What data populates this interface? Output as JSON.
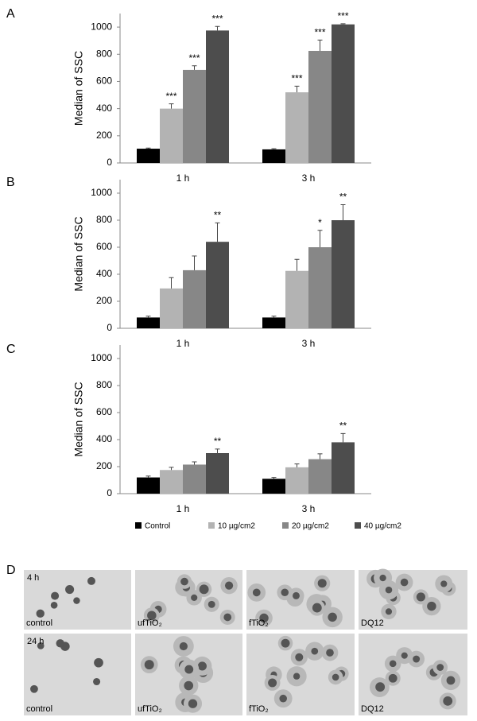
{
  "chart_data": [
    {
      "type": "bar",
      "panel": "A",
      "ylabel": "Median of SSC",
      "categories": [
        "1 h",
        "3 h"
      ],
      "ylim": [
        0,
        1100
      ],
      "yticks": [
        0,
        200,
        400,
        600,
        800,
        1000
      ],
      "series": [
        {
          "name": "Control",
          "color": "#000000",
          "values": [
            105,
            100
          ],
          "errors": [
            5,
            5
          ],
          "sig_labels": [
            null,
            null
          ]
        },
        {
          "name": "10 µg/cm2",
          "color": "#b3b3b3",
          "values": [
            400,
            520
          ],
          "errors": [
            35,
            45
          ],
          "sig_labels": [
            "***",
            "***"
          ]
        },
        {
          "name": "20 µg/cm2",
          "color": "#878787",
          "values": [
            685,
            825
          ],
          "errors": [
            30,
            80
          ],
          "sig_labels": [
            "***",
            "***"
          ]
        },
        {
          "name": "40 µg/cm2",
          "color": "#4d4d4d",
          "values": [
            975,
            1020
          ],
          "errors": [
            30,
            5
          ],
          "sig_labels": [
            "***",
            "***"
          ]
        }
      ]
    },
    {
      "type": "bar",
      "panel": "B",
      "ylabel": "Median of SSC",
      "categories": [
        "1 h",
        "3 h"
      ],
      "ylim": [
        0,
        1100
      ],
      "yticks": [
        0,
        200,
        400,
        600,
        800,
        1000
      ],
      "series": [
        {
          "color": "#000000",
          "values": [
            80,
            80
          ],
          "errors": [
            10,
            10
          ],
          "sig_labels": [
            null,
            null
          ]
        },
        {
          "color": "#b3b3b3",
          "values": [
            295,
            425
          ],
          "errors": [
            80,
            85
          ],
          "sig_labels": [
            null,
            null
          ]
        },
        {
          "color": "#878787",
          "values": [
            430,
            600
          ],
          "errors": [
            105,
            125
          ],
          "sig_labels": [
            null,
            "*"
          ]
        },
        {
          "color": "#4d4d4d",
          "values": [
            640,
            800
          ],
          "errors": [
            140,
            115
          ],
          "sig_labels": [
            "**",
            "**"
          ]
        }
      ]
    },
    {
      "type": "bar",
      "panel": "C",
      "ylabel": "Median of SSC",
      "categories": [
        "1 h",
        "3 h"
      ],
      "ylim": [
        0,
        1100
      ],
      "yticks": [
        0,
        200,
        400,
        600,
        800,
        1000
      ],
      "series": [
        {
          "color": "#000000",
          "values": [
            120,
            110
          ],
          "errors": [
            10,
            10
          ],
          "sig_labels": [
            null,
            null
          ]
        },
        {
          "color": "#b3b3b3",
          "values": [
            175,
            195
          ],
          "errors": [
            20,
            25
          ],
          "sig_labels": [
            null,
            null
          ]
        },
        {
          "color": "#878787",
          "values": [
            215,
            255
          ],
          "errors": [
            20,
            40
          ],
          "sig_labels": [
            null,
            null
          ]
        },
        {
          "color": "#4d4d4d",
          "values": [
            300,
            380
          ],
          "errors": [
            30,
            65
          ],
          "sig_labels": [
            "**",
            "**"
          ]
        }
      ]
    }
  ],
  "micrographs": {
    "panel": "D",
    "rows": [
      {
        "time": "4 h",
        "labels": [
          "control",
          "ufTiO₂",
          "fTiO₂",
          "DQ12"
        ]
      },
      {
        "time": "24 h",
        "labels": [
          "control",
          "ufTiO₂",
          "fTiO₂",
          "DQ12"
        ]
      }
    ]
  }
}
